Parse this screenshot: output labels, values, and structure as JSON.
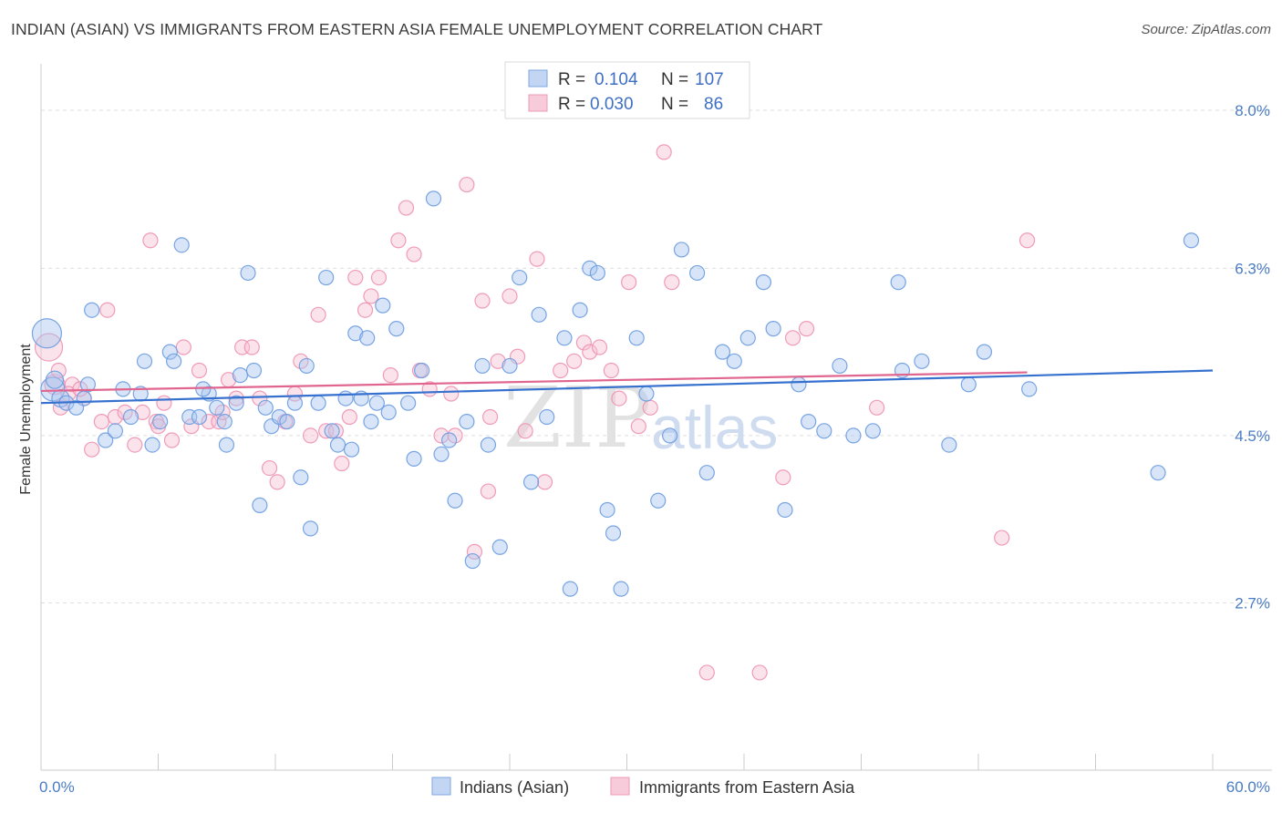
{
  "title": "INDIAN (ASIAN) VS IMMIGRANTS FROM EASTERN ASIA FEMALE UNEMPLOYMENT CORRELATION CHART",
  "source": "Source: ZipAtlas.com",
  "watermark": {
    "zip": "ZIP",
    "atlas": "atlas"
  },
  "colors": {
    "blue": "#6a9be0",
    "blue_line": "#3671cf",
    "pink": "#ee91b1",
    "pink_line": "#e0668f",
    "blue_fill": "#a9c6ef",
    "pink_fill": "#f6c0d3",
    "tick": "#4a7cc4"
  },
  "legend": {
    "rows": [
      {
        "r_label": "R =",
        "r_value": "0.104",
        "n_label": "N =",
        "n_value": "107"
      },
      {
        "r_label": "R =",
        "r_value": "0.030",
        "n_label": "N =",
        "n_value": "86"
      }
    ]
  },
  "chart_data": {
    "type": "scatter",
    "title": "INDIAN (ASIAN) VS IMMIGRANTS FROM EASTERN ASIA FEMALE UNEMPLOYMENT CORRELATION CHART",
    "xlabel": "",
    "ylabel": "Female Unemployment",
    "xlim": [
      0,
      60
    ],
    "ylim": [
      0.9,
      8.5
    ],
    "x_tick_labels": [
      "0.0%",
      "60.0%"
    ],
    "y_ticks": [
      2.7,
      4.5,
      6.3,
      8.0
    ],
    "y_tick_labels": [
      "2.7%",
      "4.5%",
      "6.3%",
      "8.0%"
    ],
    "grid": true,
    "legend_position": "top-center",
    "series": [
      {
        "name": "Indians (Asian)",
        "r": 0.104,
        "n": 107,
        "trend": {
          "x": [
            0,
            60
          ],
          "y": [
            4.85,
            5.2
          ]
        },
        "points": [
          [
            0.3,
            5.6
          ],
          [
            0.6,
            5.0
          ],
          [
            1,
            4.9
          ],
          [
            1.3,
            4.85
          ],
          [
            2.2,
            4.9
          ],
          [
            2.6,
            5.85
          ],
          [
            3.3,
            4.45
          ],
          [
            3.8,
            4.55
          ],
          [
            4.2,
            5.0
          ],
          [
            4.6,
            4.7
          ],
          [
            5.1,
            4.95
          ],
          [
            5.3,
            5.3
          ],
          [
            5.7,
            4.4
          ],
          [
            6.1,
            4.65
          ],
          [
            6.6,
            5.4
          ],
          [
            6.8,
            5.3
          ],
          [
            7.2,
            6.55
          ],
          [
            7.6,
            4.7
          ],
          [
            8.1,
            4.7
          ],
          [
            8.6,
            4.95
          ],
          [
            9,
            4.8
          ],
          [
            9.5,
            4.4
          ],
          [
            10,
            4.85
          ],
          [
            10.2,
            5.15
          ],
          [
            10.6,
            6.25
          ],
          [
            10.9,
            5.2
          ],
          [
            11.2,
            3.75
          ],
          [
            11.5,
            4.8
          ],
          [
            11.8,
            4.6
          ],
          [
            12.2,
            4.7
          ],
          [
            12.6,
            4.65
          ],
          [
            13,
            4.85
          ],
          [
            13.3,
            4.05
          ],
          [
            13.6,
            5.25
          ],
          [
            13.8,
            3.5
          ],
          [
            14.2,
            4.85
          ],
          [
            14.6,
            6.2
          ],
          [
            14.9,
            4.55
          ],
          [
            15.2,
            4.4
          ],
          [
            15.6,
            4.9
          ],
          [
            15.9,
            4.35
          ],
          [
            16.1,
            5.6
          ],
          [
            16.4,
            4.9
          ],
          [
            16.7,
            5.55
          ],
          [
            16.9,
            4.65
          ],
          [
            17.2,
            4.85
          ],
          [
            17.5,
            5.9
          ],
          [
            17.8,
            4.75
          ],
          [
            18.2,
            5.65
          ],
          [
            18.8,
            4.85
          ],
          [
            19.1,
            4.25
          ],
          [
            19.5,
            5.2
          ],
          [
            20.1,
            7.05
          ],
          [
            20.5,
            4.3
          ],
          [
            20.9,
            4.45
          ],
          [
            21.2,
            3.8
          ],
          [
            21.8,
            4.65
          ],
          [
            22.1,
            3.15
          ],
          [
            22.6,
            5.25
          ],
          [
            22.9,
            4.4
          ],
          [
            23.5,
            3.3
          ],
          [
            24,
            5.25
          ],
          [
            24.5,
            6.2
          ],
          [
            25.1,
            4.0
          ],
          [
            25.5,
            5.8
          ],
          [
            25.9,
            4.7
          ],
          [
            26.8,
            5.55
          ],
          [
            27.1,
            2.85
          ],
          [
            27.6,
            5.85
          ],
          [
            28.1,
            6.3
          ],
          [
            28.5,
            6.25
          ],
          [
            29,
            3.7
          ],
          [
            29.3,
            3.45
          ],
          [
            29.7,
            2.85
          ],
          [
            30.5,
            5.55
          ],
          [
            31,
            4.95
          ],
          [
            31.6,
            3.8
          ],
          [
            32.2,
            4.5
          ],
          [
            32.8,
            6.5
          ],
          [
            33.6,
            6.25
          ],
          [
            34.1,
            4.1
          ],
          [
            34.9,
            5.4
          ],
          [
            35.5,
            5.3
          ],
          [
            36.2,
            5.55
          ],
          [
            37,
            6.15
          ],
          [
            37.5,
            5.65
          ],
          [
            38.1,
            3.7
          ],
          [
            38.8,
            5.05
          ],
          [
            39.3,
            4.65
          ],
          [
            40.1,
            4.55
          ],
          [
            40.9,
            5.25
          ],
          [
            41.6,
            4.5
          ],
          [
            42.6,
            4.55
          ],
          [
            43.9,
            6.15
          ],
          [
            44.1,
            5.2
          ],
          [
            45.1,
            5.3
          ],
          [
            46.5,
            4.4
          ],
          [
            47.5,
            5.05
          ],
          [
            48.3,
            5.4
          ],
          [
            50.6,
            5.0
          ],
          [
            57.2,
            4.1
          ],
          [
            58.9,
            6.6
          ],
          [
            0.7,
            5.1
          ],
          [
            1.8,
            4.8
          ],
          [
            2.4,
            5.05
          ],
          [
            8.3,
            5.0
          ],
          [
            9.4,
            4.65
          ]
        ],
        "sizes": [
          32,
          26,
          19,
          16,
          16,
          16,
          16,
          16,
          16,
          16,
          16,
          16,
          16,
          16,
          16,
          16,
          16,
          16,
          16,
          16,
          16,
          16,
          16,
          16,
          16,
          16,
          16,
          16,
          16,
          16,
          16,
          16,
          16,
          16,
          16,
          16,
          16,
          16,
          16,
          16,
          16,
          16,
          16,
          16,
          16,
          16,
          16,
          16,
          16,
          16,
          16,
          16,
          16,
          16,
          16,
          16,
          16,
          16,
          16,
          16,
          16,
          16,
          16,
          16,
          16,
          16,
          16,
          16,
          16,
          16,
          16,
          16,
          16,
          16,
          16,
          16,
          16,
          16,
          16,
          16,
          16,
          16,
          16,
          16,
          16,
          16,
          16,
          16,
          16,
          16,
          16,
          16,
          16,
          16,
          16,
          16,
          16,
          16,
          16,
          16,
          16,
          16,
          19,
          16,
          16,
          16,
          16
        ]
      },
      {
        "name": "Immigrants from Eastern Asia",
        "r": 0.03,
        "n": 86,
        "trend": {
          "x": [
            0,
            50.5
          ],
          "y": [
            4.98,
            5.18
          ]
        },
        "points": [
          [
            0.4,
            5.45
          ],
          [
            0.7,
            5.05
          ],
          [
            1,
            4.8
          ],
          [
            1.6,
            5.05
          ],
          [
            2.2,
            4.9
          ],
          [
            2.6,
            4.35
          ],
          [
            3.1,
            4.65
          ],
          [
            3.4,
            5.85
          ],
          [
            3.8,
            4.7
          ],
          [
            4.3,
            4.75
          ],
          [
            4.8,
            4.4
          ],
          [
            5.2,
            4.75
          ],
          [
            5.6,
            6.6
          ],
          [
            5.9,
            4.65
          ],
          [
            6.3,
            4.85
          ],
          [
            6.7,
            4.45
          ],
          [
            7.3,
            5.45
          ],
          [
            7.7,
            4.6
          ],
          [
            8.1,
            5.2
          ],
          [
            8.6,
            4.65
          ],
          [
            9.1,
            4.65
          ],
          [
            9.6,
            5.1
          ],
          [
            10,
            4.9
          ],
          [
            10.3,
            5.45
          ],
          [
            10.8,
            5.45
          ],
          [
            11.2,
            4.9
          ],
          [
            11.7,
            4.15
          ],
          [
            12.1,
            4.0
          ],
          [
            12.5,
            4.65
          ],
          [
            13,
            4.95
          ],
          [
            13.3,
            5.3
          ],
          [
            13.8,
            4.5
          ],
          [
            14.2,
            5.8
          ],
          [
            14.6,
            4.55
          ],
          [
            15.1,
            4.55
          ],
          [
            15.4,
            4.2
          ],
          [
            15.8,
            4.7
          ],
          [
            16.1,
            6.2
          ],
          [
            16.6,
            5.85
          ],
          [
            16.9,
            6.0
          ],
          [
            17.3,
            6.2
          ],
          [
            17.9,
            5.15
          ],
          [
            18.3,
            6.6
          ],
          [
            18.7,
            6.95
          ],
          [
            19.1,
            6.45
          ],
          [
            19.4,
            5.2
          ],
          [
            19.9,
            5.0
          ],
          [
            20.5,
            4.5
          ],
          [
            21.2,
            4.5
          ],
          [
            21.8,
            7.2
          ],
          [
            22.2,
            3.25
          ],
          [
            22.6,
            5.95
          ],
          [
            22.9,
            3.9
          ],
          [
            23.4,
            5.3
          ],
          [
            24,
            6.0
          ],
          [
            24.4,
            5.35
          ],
          [
            24.8,
            4.55
          ],
          [
            25.4,
            6.4
          ],
          [
            25.8,
            4.0
          ],
          [
            26.6,
            5.2
          ],
          [
            27.3,
            5.3
          ],
          [
            27.8,
            5.5
          ],
          [
            28.1,
            5.4
          ],
          [
            28.6,
            5.45
          ],
          [
            29.2,
            5.2
          ],
          [
            29.6,
            4.9
          ],
          [
            30.1,
            6.15
          ],
          [
            30.6,
            4.6
          ],
          [
            31.2,
            4.8
          ],
          [
            31.9,
            7.55
          ],
          [
            32.3,
            6.15
          ],
          [
            34.1,
            1.95
          ],
          [
            36.8,
            1.95
          ],
          [
            38,
            4.05
          ],
          [
            38.5,
            5.55
          ],
          [
            39.2,
            5.65
          ],
          [
            42.8,
            4.8
          ],
          [
            49.2,
            3.4
          ],
          [
            50.5,
            6.6
          ],
          [
            0.9,
            5.2
          ],
          [
            1.4,
            4.95
          ],
          [
            2.0,
            5.0
          ],
          [
            6.0,
            4.6
          ],
          [
            9.3,
            4.75
          ],
          [
            21.0,
            4.95
          ],
          [
            23.0,
            4.7
          ]
        ],
        "sizes": [
          30,
          22,
          16,
          16,
          16,
          16,
          16,
          16,
          16,
          16,
          16,
          16,
          16,
          16,
          16,
          16,
          16,
          16,
          16,
          16,
          16,
          16,
          16,
          16,
          16,
          16,
          16,
          16,
          16,
          16,
          16,
          16,
          16,
          16,
          16,
          16,
          16,
          16,
          16,
          16,
          16,
          16,
          16,
          16,
          16,
          16,
          16,
          16,
          16,
          16,
          16,
          16,
          16,
          16,
          16,
          16,
          16,
          16,
          16,
          16,
          16,
          16,
          16,
          16,
          16,
          16,
          16,
          16,
          16,
          16,
          16,
          16,
          16,
          16,
          16,
          16,
          16,
          16,
          16,
          16,
          16,
          16,
          16,
          16,
          16,
          16
        ]
      }
    ]
  }
}
